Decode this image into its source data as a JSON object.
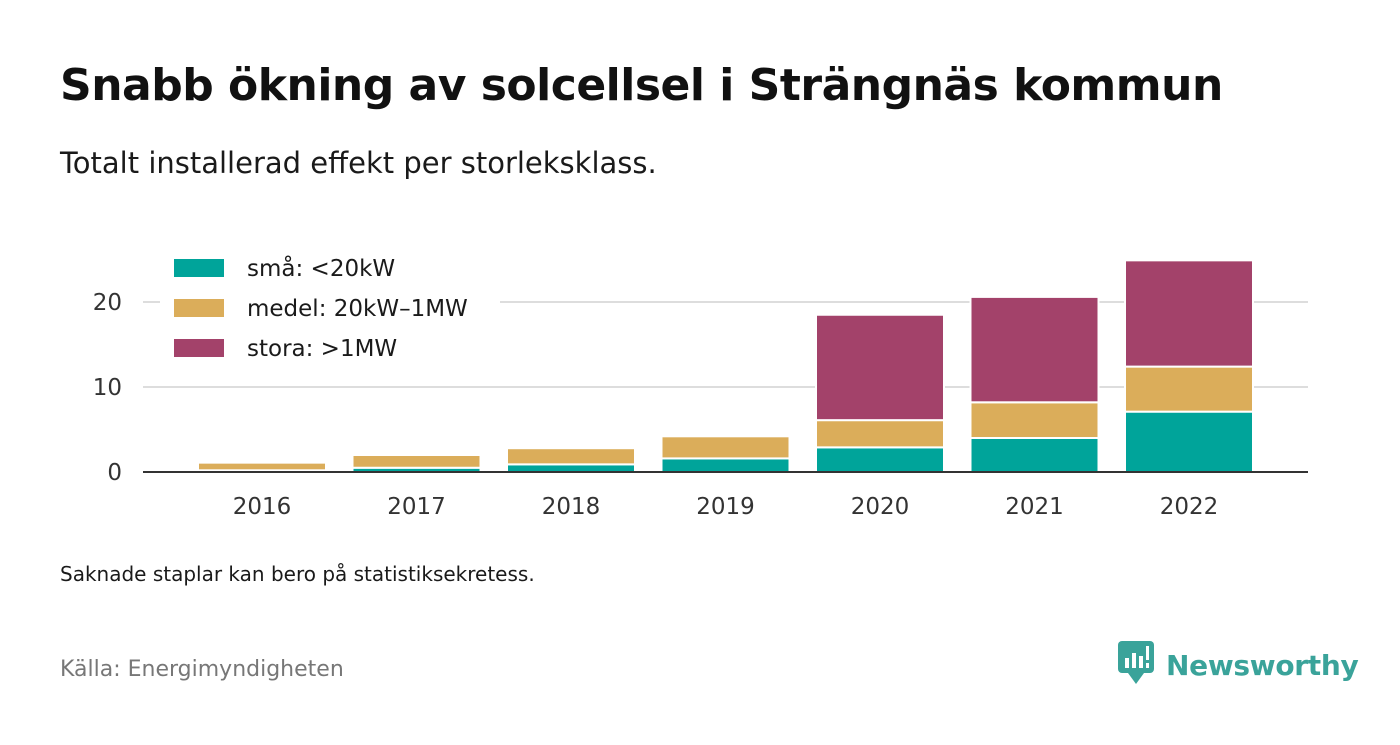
{
  "header": {
    "title": "Snabb ökning av solcellsel i Strängnäs kommun",
    "subtitle": "Totalt installerad effekt per storleksklass."
  },
  "footer": {
    "note": "Saknade staplar kan bero på statistiksekretess.",
    "source": "Källa: Energimyndigheten",
    "brand": "Newsworthy"
  },
  "icons": {
    "brand_logo": "bar-chart-speech-bubble-icon"
  },
  "colors": {
    "sma": "#00a49a",
    "medel": "#dbad5a",
    "stora": "#a3426a",
    "brand": "#3aa39a"
  },
  "chart_data": {
    "type": "bar",
    "stacked": true,
    "categories": [
      "2016",
      "2017",
      "2018",
      "2019",
      "2020",
      "2021",
      "2022"
    ],
    "series": [
      {
        "name": "små: <20kW",
        "color": "#00a49a",
        "values": [
          0.2,
          0.5,
          0.9,
          1.6,
          2.9,
          4.0,
          7.1
        ]
      },
      {
        "name": "medel: 20kW–1MW",
        "color": "#dbad5a",
        "values": [
          0.9,
          1.5,
          1.9,
          2.6,
          3.2,
          4.2,
          5.3
        ]
      },
      {
        "name": "stora: >1MW",
        "color": "#a3426a",
        "values": [
          0,
          0,
          0,
          0,
          12.4,
          12.4,
          12.5
        ]
      }
    ],
    "yticks": [
      0,
      10,
      20
    ],
    "ylim": [
      0,
      25
    ],
    "grid": true,
    "legend": "top-left",
    "xlabel": "",
    "ylabel": ""
  }
}
